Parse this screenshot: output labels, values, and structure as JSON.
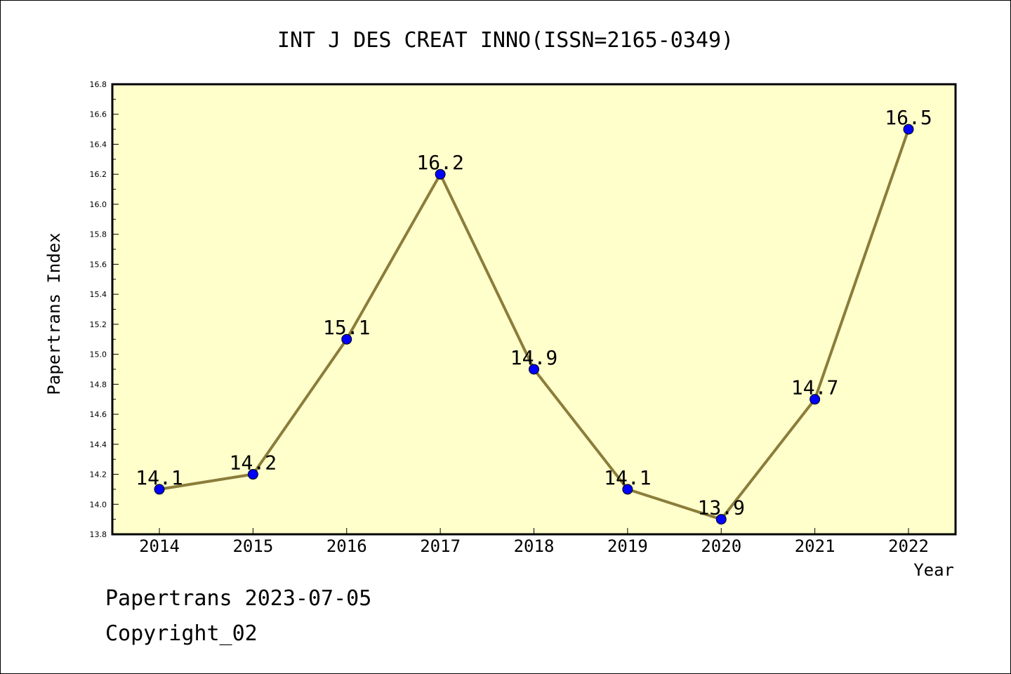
{
  "chart_data": {
    "type": "line",
    "title": "INT J DES CREAT INNO(ISSN=2165-0349)",
    "xlabel": "Year",
    "ylabel": "Papertrans Index",
    "categories": [
      "2014",
      "2015",
      "2016",
      "2017",
      "2018",
      "2019",
      "2020",
      "2021",
      "2022"
    ],
    "series": [
      {
        "values": [
          14.1,
          14.2,
          15.1,
          16.2,
          14.9,
          14.1,
          13.9,
          14.7,
          16.5
        ],
        "point_labels": [
          "14.1",
          "14.2",
          "15.1",
          "16.2",
          "14.9",
          "14.1",
          "13.9",
          "14.7",
          "16.5"
        ]
      }
    ],
    "ylim": [
      13.8,
      16.8
    ],
    "yticks": [
      "13.8",
      "14.0",
      "14.2",
      "14.4",
      "14.6",
      "14.8",
      "15.0",
      "15.2",
      "15.4",
      "15.6",
      "15.8",
      "16.0",
      "16.2",
      "16.4",
      "16.6",
      "16.8"
    ],
    "grid": false,
    "legend": false,
    "colors": {
      "plot_background": "#ffffcc",
      "line": "#8b7d3a",
      "marker": "#0000ff",
      "axis": "#000000"
    }
  },
  "footer": {
    "date_text": "Papertrans 2023-07-05",
    "copyright_text": "Copyright_02"
  }
}
